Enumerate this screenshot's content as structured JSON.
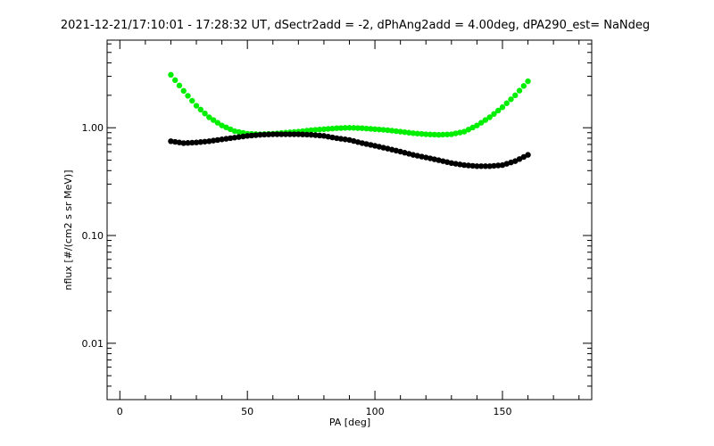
{
  "chart_data": {
    "type": "scatter",
    "title": "2021-12-21/17:10:01 - 17:28:32 UT, dSectr2add = -2, dPhAng2add = 4.00deg, dPA290_est=    NaNdeg",
    "xlabel": "PA [deg]",
    "ylabel": "nflux [#/(cm2 s sr MeV)]",
    "xlim": [
      -5,
      185
    ],
    "ylim": [
      0.003,
      6.5
    ],
    "y_scale": "log",
    "x_ticks": [
      0,
      50,
      100,
      150
    ],
    "y_ticks": [
      {
        "value": 0.01,
        "label": "0.01"
      },
      {
        "value": 0.1,
        "label": "0.10"
      },
      {
        "value": 1,
        "label": "1.00"
      }
    ],
    "grid": false,
    "series": [
      {
        "color": "#00ee00",
        "x": [
          20,
          25,
          30,
          35,
          40,
          45,
          50,
          55,
          60,
          65,
          70,
          75,
          80,
          85,
          90,
          95,
          100,
          105,
          110,
          115,
          120,
          125,
          130,
          135,
          140,
          145,
          150,
          155,
          160
        ],
        "values": [
          3.1,
          2.2,
          1.6,
          1.25,
          1.05,
          0.93,
          0.88,
          0.87,
          0.88,
          0.9,
          0.92,
          0.95,
          0.97,
          0.99,
          1.0,
          0.99,
          0.97,
          0.95,
          0.92,
          0.89,
          0.87,
          0.86,
          0.87,
          0.92,
          1.05,
          1.25,
          1.55,
          2.0,
          2.7
        ]
      },
      {
        "color": "#000000",
        "x": [
          20,
          25,
          30,
          35,
          40,
          45,
          50,
          55,
          60,
          65,
          70,
          75,
          80,
          85,
          90,
          95,
          100,
          105,
          110,
          115,
          120,
          125,
          130,
          135,
          140,
          145,
          150,
          155,
          160
        ],
        "values": [
          0.75,
          0.72,
          0.73,
          0.75,
          0.78,
          0.81,
          0.84,
          0.86,
          0.87,
          0.87,
          0.87,
          0.86,
          0.84,
          0.8,
          0.77,
          0.72,
          0.68,
          0.64,
          0.6,
          0.56,
          0.53,
          0.5,
          0.47,
          0.45,
          0.44,
          0.44,
          0.45,
          0.49,
          0.56
        ]
      }
    ]
  }
}
